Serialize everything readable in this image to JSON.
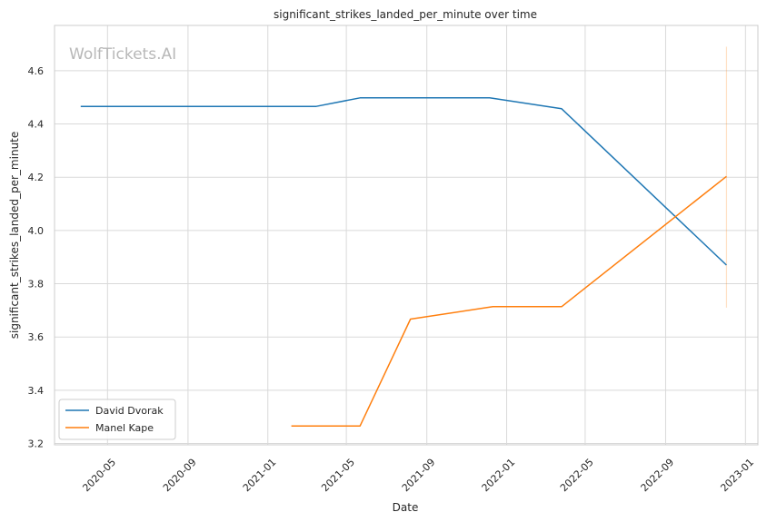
{
  "chart_data": {
    "type": "line",
    "title": "significant_strikes_landed_per_minute over time",
    "xlabel": "Date",
    "ylabel": "significant_strikes_landed_per_minute",
    "watermark": "WolfTickets.AI",
    "xlim": [
      "2020-02-10",
      "2023-01-20"
    ],
    "ylim": [
      3.195,
      4.77
    ],
    "x_ticks": [
      {
        "date": "2020-05-01",
        "label": "2020-05"
      },
      {
        "date": "2020-09-01",
        "label": "2020-09"
      },
      {
        "date": "2021-01-01",
        "label": "2021-01"
      },
      {
        "date": "2021-05-01",
        "label": "2021-05"
      },
      {
        "date": "2021-09-01",
        "label": "2021-09"
      },
      {
        "date": "2022-01-01",
        "label": "2022-01"
      },
      {
        "date": "2022-05-01",
        "label": "2022-05"
      },
      {
        "date": "2022-09-01",
        "label": "2022-09"
      },
      {
        "date": "2023-01-01",
        "label": "2023-01"
      }
    ],
    "y_ticks": [
      {
        "value": 3.2,
        "label": "3.2"
      },
      {
        "value": 3.4,
        "label": "3.4"
      },
      {
        "value": 3.6,
        "label": "3.6"
      },
      {
        "value": 3.8,
        "label": "3.8"
      },
      {
        "value": 4.0,
        "label": "4.0"
      },
      {
        "value": 4.2,
        "label": "4.2"
      },
      {
        "value": 4.4,
        "label": "4.4"
      },
      {
        "value": 4.6,
        "label": "4.6"
      }
    ],
    "grid": true,
    "legend_position": "lower-left",
    "series": [
      {
        "name": "David Dvorak",
        "color": "#1f77b4",
        "points": [
          {
            "x": "2020-03-21",
            "y": 4.466
          },
          {
            "x": "2021-03-16",
            "y": 4.466
          },
          {
            "x": "2021-05-22",
            "y": 4.498
          },
          {
            "x": "2021-12-06",
            "y": 4.498
          },
          {
            "x": "2022-03-26",
            "y": 4.457
          },
          {
            "x": "2022-12-03",
            "y": 3.87
          }
        ]
      },
      {
        "name": "Manel Kape",
        "color": "#ff7f0e",
        "points": [
          {
            "x": "2021-02-06",
            "y": 3.266
          },
          {
            "x": "2021-05-22",
            "y": 3.266
          },
          {
            "x": "2021-08-07",
            "y": 3.667
          },
          {
            "x": "2021-12-11",
            "y": 3.714
          },
          {
            "x": "2022-03-26",
            "y": 3.714
          },
          {
            "x": "2022-12-03",
            "y": 4.203
          }
        ]
      }
    ],
    "error_band": {
      "series": "Manel Kape",
      "x": "2022-12-03",
      "low": 3.71,
      "high": 4.69,
      "color": "#ff7f0e"
    }
  }
}
